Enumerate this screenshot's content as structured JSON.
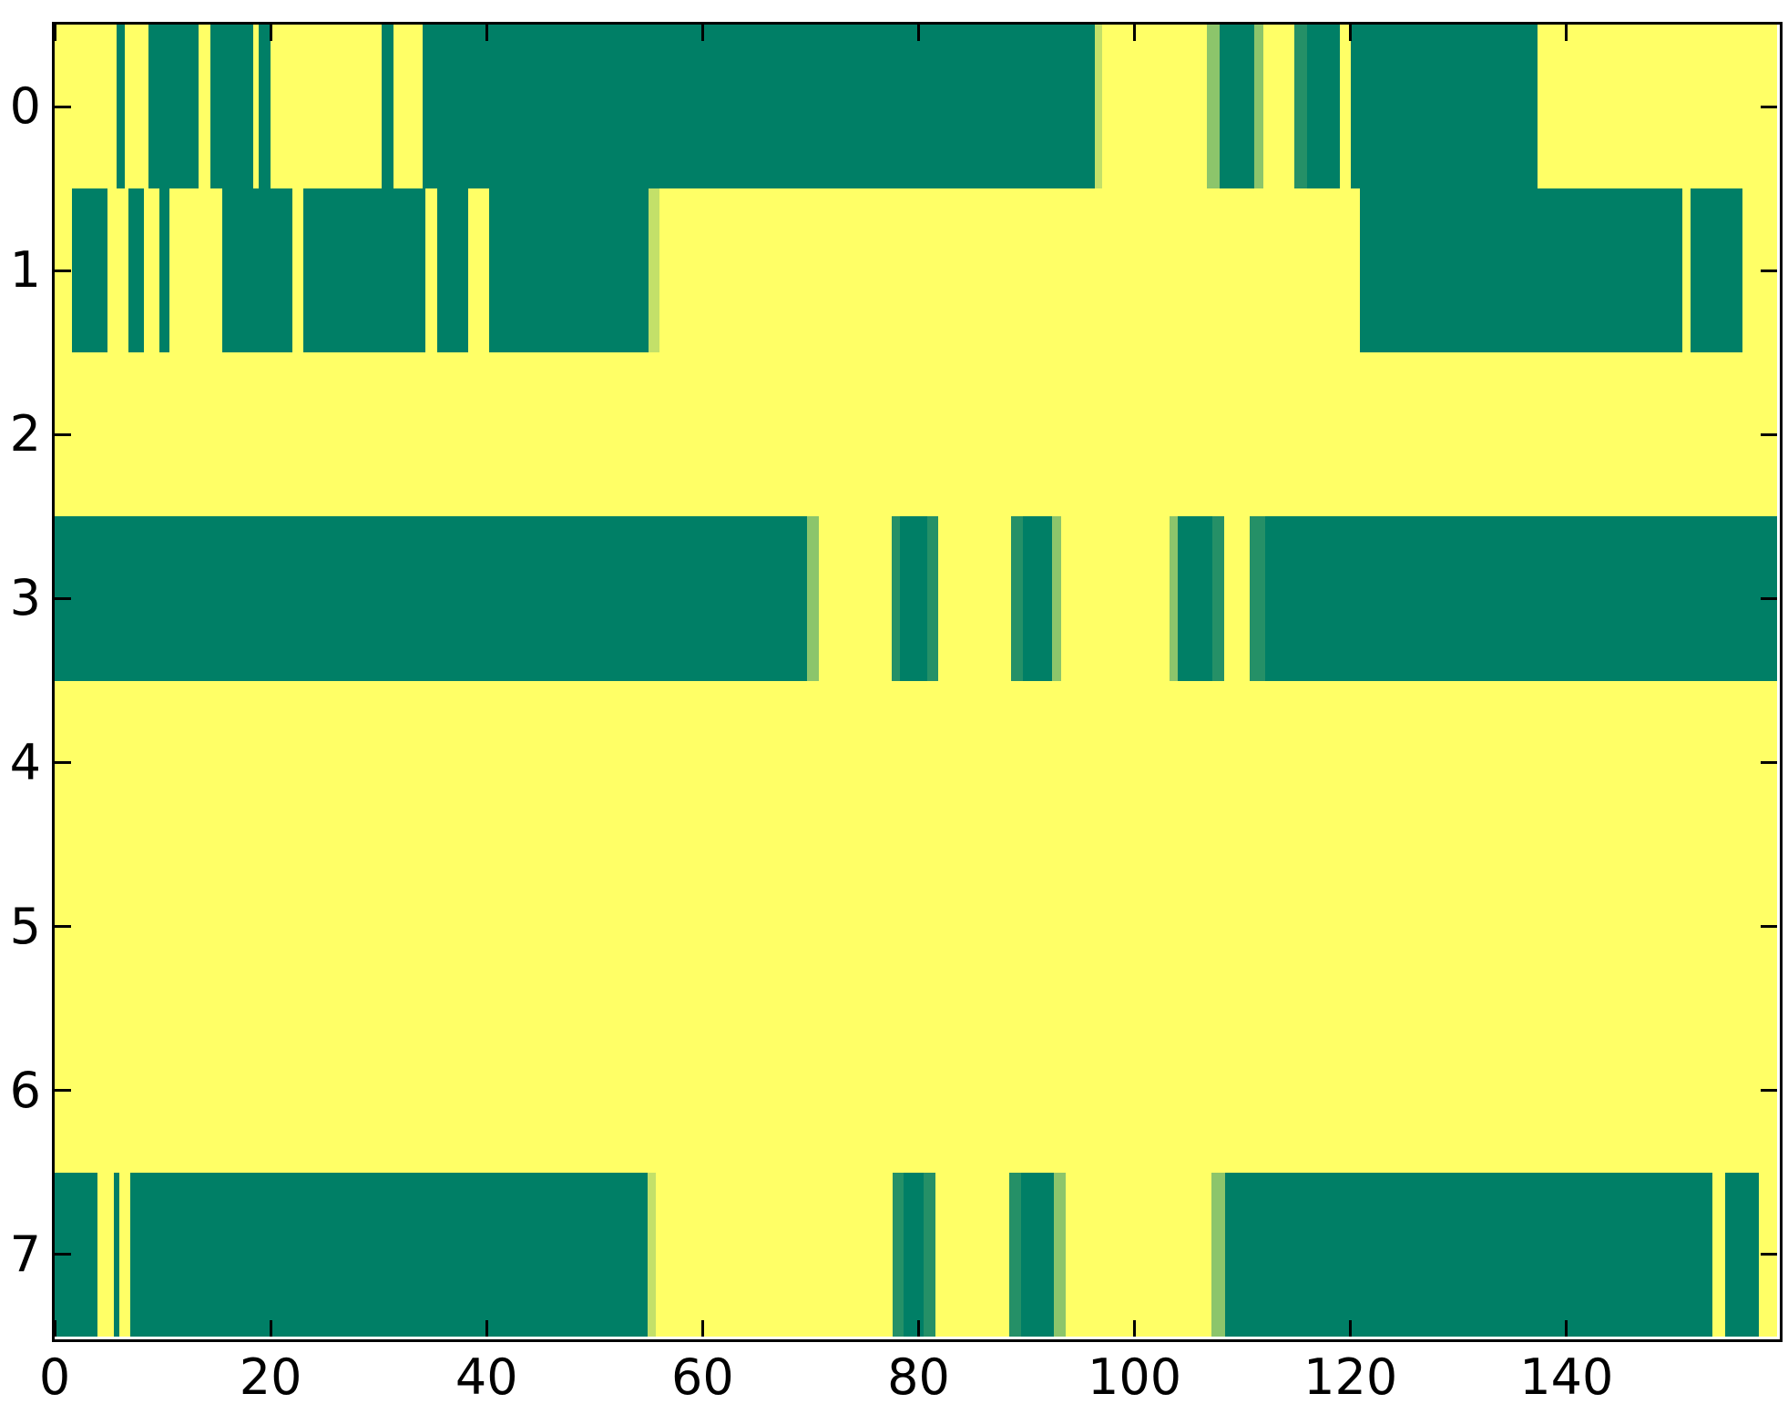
{
  "figure": {
    "background": "#ffffff",
    "plot_background": "#ffff66",
    "border_color": "#000000",
    "colors": {
      "g": "#007f66",
      "y": "#ffff66",
      "pale": "#c3e069",
      "light": "#8cc56b",
      "mid": "#259067"
    }
  },
  "chart_data": {
    "type": "heatmap",
    "title": "",
    "xlabel": "",
    "ylabel": "",
    "colormap": "summer (binary: 0=teal-green, 1=yellow)",
    "grid": false,
    "legend": "none",
    "x_axis": {
      "min": 0,
      "max": 159.5,
      "ticks": [
        0,
        20,
        40,
        60,
        80,
        100,
        120,
        140
      ],
      "tick_labels": [
        "0",
        "20",
        "40",
        "60",
        "80",
        "100",
        "120",
        "140"
      ]
    },
    "y_axis": {
      "ticks": [
        0,
        1,
        2,
        3,
        4,
        5,
        6,
        7
      ],
      "tick_labels": [
        "0",
        "1",
        "2",
        "3",
        "4",
        "5",
        "6",
        "7"
      ]
    },
    "rows": [
      {
        "label": "0",
        "segments": [
          [
            0,
            5.7,
            "y"
          ],
          [
            5.7,
            6.5,
            "g"
          ],
          [
            6.5,
            8.7,
            "y"
          ],
          [
            8.7,
            13.3,
            "g"
          ],
          [
            13.3,
            14.4,
            "y"
          ],
          [
            14.4,
            18.4,
            "g"
          ],
          [
            18.4,
            18.9,
            "y"
          ],
          [
            18.9,
            20,
            "g"
          ],
          [
            20,
            30.3,
            "y"
          ],
          [
            30.3,
            31.4,
            "g"
          ],
          [
            31.4,
            34.1,
            "y"
          ],
          [
            34.1,
            96.3,
            "g"
          ],
          [
            96.3,
            97,
            "pale"
          ],
          [
            97,
            106.7,
            "y"
          ],
          [
            106.7,
            107.9,
            "light"
          ],
          [
            107.9,
            111.1,
            "g"
          ],
          [
            111.1,
            111.9,
            "light"
          ],
          [
            111.9,
            114.8,
            "y"
          ],
          [
            114.8,
            116,
            "mid"
          ],
          [
            116,
            119,
            "g"
          ],
          [
            119,
            120,
            "y"
          ],
          [
            120,
            137.3,
            "g"
          ],
          [
            137.3,
            159.5,
            "y"
          ]
        ]
      },
      {
        "label": "1",
        "segments": [
          [
            0,
            1.6,
            "y"
          ],
          [
            1.6,
            4.9,
            "g"
          ],
          [
            4.9,
            6.8,
            "y"
          ],
          [
            6.8,
            8.3,
            "g"
          ],
          [
            8.3,
            9.7,
            "y"
          ],
          [
            9.7,
            10.6,
            "g"
          ],
          [
            10.6,
            15.5,
            "y"
          ],
          [
            15.5,
            22,
            "g"
          ],
          [
            22,
            23,
            "y"
          ],
          [
            23,
            34.3,
            "g"
          ],
          [
            34.3,
            35.4,
            "y"
          ],
          [
            35.4,
            38.3,
            "g"
          ],
          [
            38.3,
            40.2,
            "y"
          ],
          [
            40.2,
            55,
            "g"
          ],
          [
            55,
            56,
            "pale"
          ],
          [
            56,
            120.9,
            "y"
          ],
          [
            120.9,
            150.7,
            "g"
          ],
          [
            150.7,
            151.5,
            "y"
          ],
          [
            151.5,
            156.3,
            "g"
          ],
          [
            156.3,
            159.5,
            "y"
          ]
        ]
      },
      {
        "label": "2",
        "segments": [
          [
            0,
            159.5,
            "y"
          ]
        ]
      },
      {
        "label": "3",
        "segments": [
          [
            0,
            69.7,
            "g"
          ],
          [
            69.7,
            70.8,
            "light"
          ],
          [
            70.8,
            77.5,
            "y"
          ],
          [
            77.5,
            78.3,
            "mid"
          ],
          [
            78.3,
            80.8,
            "g"
          ],
          [
            80.8,
            81.8,
            "mid"
          ],
          [
            81.8,
            88.6,
            "y"
          ],
          [
            88.6,
            89.7,
            "mid"
          ],
          [
            89.7,
            92.4,
            "g"
          ],
          [
            92.4,
            93.2,
            "light"
          ],
          [
            93.2,
            103.2,
            "y"
          ],
          [
            103.2,
            104,
            "light"
          ],
          [
            104,
            107.2,
            "g"
          ],
          [
            107.2,
            108.3,
            "mid"
          ],
          [
            108.3,
            110.7,
            "y"
          ],
          [
            110.7,
            112.1,
            "mid"
          ],
          [
            112.1,
            159.5,
            "g"
          ]
        ]
      },
      {
        "label": "4",
        "segments": [
          [
            0,
            159.5,
            "y"
          ]
        ]
      },
      {
        "label": "5",
        "segments": [
          [
            0,
            159.5,
            "y"
          ]
        ]
      },
      {
        "label": "6",
        "segments": [
          [
            0,
            159.5,
            "y"
          ]
        ]
      },
      {
        "label": "7",
        "segments": [
          [
            0,
            4,
            "g"
          ],
          [
            4,
            5.5,
            "y"
          ],
          [
            5.5,
            6,
            "g"
          ],
          [
            6,
            7,
            "y"
          ],
          [
            7,
            54.9,
            "g"
          ],
          [
            54.9,
            55.7,
            "pale"
          ],
          [
            55.7,
            77.6,
            "y"
          ],
          [
            77.6,
            78.6,
            "mid"
          ],
          [
            78.6,
            80.5,
            "g"
          ],
          [
            80.5,
            81.6,
            "mid"
          ],
          [
            81.6,
            88.4,
            "y"
          ],
          [
            88.4,
            89.5,
            "mid"
          ],
          [
            89.5,
            92.5,
            "g"
          ],
          [
            92.5,
            93.6,
            "light"
          ],
          [
            93.6,
            107.1,
            "y"
          ],
          [
            107.1,
            108.4,
            "light"
          ],
          [
            108.4,
            153.5,
            "g"
          ],
          [
            153.5,
            154.7,
            "y"
          ],
          [
            154.7,
            157.8,
            "g"
          ],
          [
            157.8,
            159.5,
            "y"
          ]
        ]
      }
    ]
  }
}
